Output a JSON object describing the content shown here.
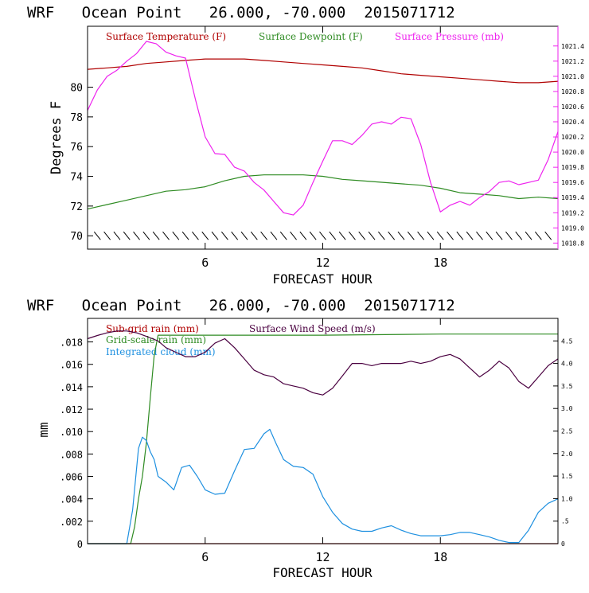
{
  "colors": {
    "temperature": "#b00000",
    "dewpoint": "#2e8b22",
    "pressure": "#ee22ee",
    "subgrid_rain": "#b00000",
    "gridscale_rain": "#2e8b22",
    "cloud": "#1e90e0",
    "wind": "#4a0040",
    "frame": "#000000"
  },
  "chart_data": [
    {
      "type": "line",
      "title": "WRF   Ocean Point   26.000, -70.000  2015071712",
      "xlabel": "FORECAST HOUR",
      "ylabel": "Degrees F",
      "xlim": [
        0,
        24
      ],
      "ylim": [
        69.1,
        84.1
      ],
      "y2lim": [
        1018.72,
        1021.66
      ],
      "x_ticks": [
        6,
        12,
        18
      ],
      "x_tick_labels": [
        "6",
        "12",
        "18"
      ],
      "y_ticks": [
        70,
        72,
        74,
        76,
        78,
        80
      ],
      "y_tick_labels": [
        "70",
        "72",
        "74",
        "76",
        "78",
        "80"
      ],
      "y2_ticks": [
        1018.8,
        1019.0,
        1019.2,
        1019.4,
        1019.6,
        1019.8,
        1020.0,
        1020.2,
        1020.4,
        1020.6,
        1020.8,
        1021.0,
        1021.2,
        1021.4
      ],
      "y2_tick_labels": [
        "1018.8",
        "1019.0",
        "1019.2",
        "1019.4",
        "1019.6",
        "1019.8",
        "1020.0",
        "1020.2",
        "1020.4",
        "1020.6",
        "1020.8",
        "1021.0",
        "1021.2",
        "1021.4"
      ],
      "wind_barbs_y": 70,
      "legend": [
        "Surface Temperature (F)",
        "Surface Dewpoint (F)",
        "Surface Pressure (mb)"
      ],
      "series": [
        {
          "name": "Surface Temperature (F)",
          "axis": "left",
          "x": [
            0,
            1,
            2,
            3,
            4,
            5,
            6,
            7,
            8,
            9,
            10,
            11,
            12,
            13,
            14,
            15,
            16,
            17,
            18,
            19,
            20,
            21,
            22,
            23,
            24
          ],
          "y": [
            81.2,
            81.3,
            81.4,
            81.6,
            81.7,
            81.8,
            81.9,
            81.9,
            81.9,
            81.8,
            81.7,
            81.6,
            81.5,
            81.4,
            81.3,
            81.1,
            80.9,
            80.8,
            80.7,
            80.6,
            80.5,
            80.4,
            80.3,
            80.3,
            80.4
          ]
        },
        {
          "name": "Surface Dewpoint (F)",
          "axis": "left",
          "x": [
            0,
            1,
            2,
            3,
            4,
            5,
            6,
            7,
            8,
            9,
            10,
            11,
            12,
            13,
            14,
            15,
            16,
            17,
            18,
            19,
            20,
            21,
            22,
            23,
            24
          ],
          "y": [
            71.8,
            72.1,
            72.4,
            72.7,
            73.0,
            73.1,
            73.3,
            73.7,
            74.0,
            74.1,
            74.1,
            74.1,
            74.0,
            73.8,
            73.7,
            73.6,
            73.5,
            73.4,
            73.2,
            72.9,
            72.8,
            72.7,
            72.5,
            72.6,
            72.5
          ]
        },
        {
          "name": "Surface Pressure (mb)",
          "axis": "right",
          "x": [
            0,
            0.5,
            1,
            1.5,
            2,
            2.5,
            3,
            3.5,
            4,
            4.5,
            5,
            5.5,
            6,
            6.5,
            7,
            7.5,
            8,
            8.5,
            9,
            9.5,
            10,
            10.5,
            11,
            11.5,
            12,
            12.5,
            13,
            13.5,
            14,
            14.5,
            15,
            15.5,
            16,
            16.5,
            17,
            17.5,
            18,
            18.5,
            19,
            19.5,
            20,
            20.5,
            21,
            21.5,
            22,
            22.5,
            23,
            23.5,
            24
          ],
          "y": [
            1020.55,
            1020.82,
            1021.0,
            1021.08,
            1021.2,
            1021.3,
            1021.46,
            1021.43,
            1021.32,
            1021.27,
            1021.24,
            1020.7,
            1020.2,
            1019.98,
            1019.97,
            1019.8,
            1019.75,
            1019.6,
            1019.5,
            1019.35,
            1019.2,
            1019.17,
            1019.3,
            1019.6,
            1019.88,
            1020.15,
            1020.15,
            1020.1,
            1020.22,
            1020.37,
            1020.4,
            1020.37,
            1020.46,
            1020.44,
            1020.1,
            1019.6,
            1019.21,
            1019.3,
            1019.35,
            1019.3,
            1019.4,
            1019.48,
            1019.6,
            1019.62,
            1019.57,
            1019.6,
            1019.63,
            1019.9,
            1020.27
          ]
        }
      ]
    },
    {
      "type": "line",
      "title": "WRF   Ocean Point   26.000, -70.000  2015071712",
      "xlabel": "FORECAST HOUR",
      "ylabel": "mm",
      "xlim": [
        0,
        24
      ],
      "ylim": [
        0,
        0.0201
      ],
      "y2lim": [
        0,
        5.0
      ],
      "x_ticks": [
        6,
        12,
        18
      ],
      "x_tick_labels": [
        "6",
        "12",
        "18"
      ],
      "y_ticks": [
        0,
        0.002,
        0.004,
        0.006,
        0.008,
        0.01,
        0.012,
        0.014,
        0.016,
        0.018
      ],
      "y_tick_labels": [
        "0",
        ".002",
        ".004",
        ".006",
        ".008",
        ".010",
        ".012",
        ".014",
        ".016",
        ".018"
      ],
      "y2_ticks": [
        0,
        0.5,
        1.0,
        1.5,
        2.0,
        2.5,
        3.0,
        3.5,
        4.0,
        4.5
      ],
      "y2_tick_labels": [
        "0",
        ".5",
        "1.0",
        "1.5",
        "2.0",
        "2.5",
        "3.0",
        "3.5",
        "4.0",
        "4.5"
      ],
      "legend": [
        "Sub-grid rain (mm)",
        "Grid-scale rain (mm)",
        "Integrated cloud (mm)",
        "Surface Wind Speed (m/s)"
      ],
      "series": [
        {
          "name": "Sub-grid rain (mm)",
          "axis": "left",
          "x": [
            0,
            24
          ],
          "y": [
            0,
            0
          ]
        },
        {
          "name": "Grid-scale rain (mm)",
          "axis": "left",
          "x": [
            0,
            2.2,
            2.4,
            2.6,
            2.8,
            3.0,
            3.2,
            3.4,
            3.6,
            4,
            12,
            18,
            24
          ],
          "y": [
            0,
            0,
            0.0015,
            0.004,
            0.006,
            0.009,
            0.013,
            0.0168,
            0.0186,
            0.0186,
            0.0186,
            0.0187,
            0.0187
          ]
        },
        {
          "name": "Integrated cloud (mm)",
          "axis": "left",
          "x": [
            0,
            1.5,
            2.0,
            2.3,
            2.6,
            2.8,
            3.0,
            3.2,
            3.4,
            3.6,
            4.0,
            4.4,
            4.8,
            5.2,
            5.6,
            6.0,
            6.5,
            7.0,
            7.5,
            8.0,
            8.5,
            9.0,
            9.3,
            9.6,
            10.0,
            10.5,
            11.0,
            11.5,
            12.0,
            12.5,
            13.0,
            13.5,
            14.0,
            14.5,
            15.0,
            15.5,
            16.0,
            16.5,
            17.0,
            17.5,
            18.0,
            18.5,
            19.0,
            19.5,
            20.0,
            20.5,
            21.0,
            21.5,
            22.0,
            22.5,
            23.0,
            23.5,
            24.0
          ],
          "y": [
            0,
            0,
            0,
            0.003,
            0.0085,
            0.0095,
            0.0092,
            0.0082,
            0.0075,
            0.006,
            0.0055,
            0.0048,
            0.0068,
            0.007,
            0.006,
            0.0048,
            0.0044,
            0.0045,
            0.0065,
            0.0084,
            0.0085,
            0.0098,
            0.0102,
            0.009,
            0.0075,
            0.0069,
            0.0068,
            0.0062,
            0.0042,
            0.0028,
            0.0018,
            0.0013,
            0.0011,
            0.0011,
            0.0014,
            0.0016,
            0.0012,
            0.0009,
            0.0007,
            0.0007,
            0.0007,
            0.0008,
            0.001,
            0.001,
            0.0008,
            0.0006,
            0.0003,
            0.0001,
            0.0001,
            0.0012,
            0.0028,
            0.0036,
            0.004
          ]
        },
        {
          "name": "Surface Wind Speed (m/s)",
          "axis": "right",
          "x": [
            0,
            0.5,
            1.0,
            1.5,
            2.0,
            2.5,
            3.0,
            3.3,
            3.6,
            4.0,
            4.5,
            5.0,
            5.5,
            6.0,
            6.5,
            7.0,
            7.5,
            8.0,
            8.5,
            9.0,
            9.5,
            10.0,
            10.5,
            11.0,
            11.5,
            12.0,
            12.5,
            13.0,
            13.5,
            14.0,
            14.5,
            15.0,
            15.5,
            16.0,
            16.5,
            17.0,
            17.5,
            18.0,
            18.5,
            19.0,
            19.5,
            20.0,
            20.5,
            21.0,
            21.5,
            22.0,
            22.5,
            23.0,
            23.5,
            24.0
          ],
          "y": [
            4.55,
            4.62,
            4.68,
            4.72,
            4.72,
            4.68,
            4.6,
            4.55,
            4.5,
            4.35,
            4.25,
            4.15,
            4.15,
            4.25,
            4.45,
            4.55,
            4.35,
            4.1,
            3.85,
            3.75,
            3.7,
            3.55,
            3.5,
            3.45,
            3.35,
            3.3,
            3.45,
            3.72,
            4.0,
            4.0,
            3.95,
            4.0,
            4.0,
            4.0,
            4.05,
            4.0,
            4.05,
            4.15,
            4.2,
            4.1,
            3.9,
            3.7,
            3.85,
            4.05,
            3.9,
            3.6,
            3.45,
            3.7,
            3.95,
            4.1
          ]
        }
      ]
    }
  ]
}
